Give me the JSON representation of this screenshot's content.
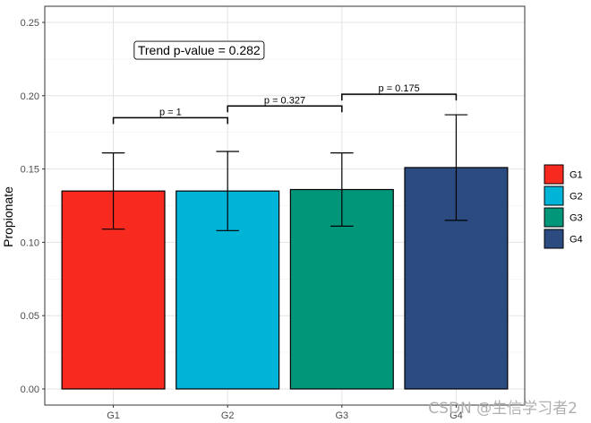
{
  "chart_data": {
    "type": "bar",
    "title": "",
    "xlabel": "",
    "ylabel": "Propionate",
    "categories": [
      "G1",
      "G2",
      "G3",
      "G4"
    ],
    "values": [
      0.135,
      0.135,
      0.136,
      0.151
    ],
    "error_low": [
      0.109,
      0.108,
      0.111,
      0.115
    ],
    "error_high": [
      0.161,
      0.162,
      0.161,
      0.187
    ],
    "colors": [
      "#f8291f",
      "#00b4d8",
      "#00967a",
      "#2c4b80"
    ],
    "ylim": [
      -0.011,
      0.261
    ],
    "yticks": [
      0.0,
      0.05,
      0.1,
      0.15,
      0.2,
      0.25
    ],
    "ytick_labels": [
      "0.00",
      "0.05",
      "0.10",
      "0.15",
      "0.20",
      "0.25"
    ],
    "grid": true,
    "legend": {
      "position": "right",
      "entries": [
        "G1",
        "G2",
        "G3",
        "G4"
      ]
    },
    "annotation": {
      "text": "Trend p-value = 0.282",
      "y": 0.231
    },
    "comparisons": [
      {
        "from": "G1",
        "to": "G2",
        "label": "p = 1",
        "y": 0.185
      },
      {
        "from": "G2",
        "to": "G3",
        "label": "p = 0.327",
        "y": 0.193
      },
      {
        "from": "G3",
        "to": "G4",
        "label": "p = 0.175",
        "y": 0.201
      }
    ]
  },
  "watermark": "CSDN @生信学习者2"
}
